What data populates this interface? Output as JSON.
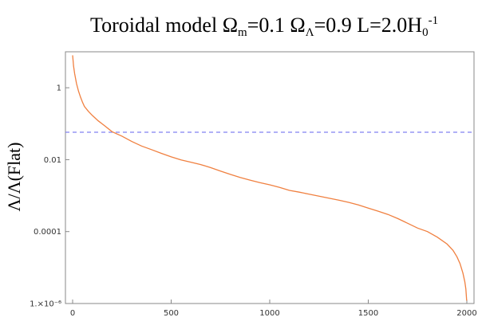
{
  "chart_data": {
    "type": "line",
    "title": {
      "prefix": "Toroidal model Ω",
      "omega_m_sub": "m",
      "omega_m_rest": "=0.1 Ω",
      "omega_l_sub": "Λ",
      "omega_l_rest": "=0.9 L=2.0H",
      "h_sub": "0",
      "h_sup": "-1"
    },
    "xlabel": "",
    "ylabel": "Λ/Λ(Flat)",
    "y_scale": "log",
    "xlim": [
      0,
      2000
    ],
    "ylim": [
      1e-06,
      10
    ],
    "x_ticks": [
      {
        "value": 0,
        "label": "0"
      },
      {
        "value": 500,
        "label": "500"
      },
      {
        "value": 1000,
        "label": "1000"
      },
      {
        "value": 1500,
        "label": "1500"
      },
      {
        "value": 2000,
        "label": "2000"
      }
    ],
    "y_ticks": [
      {
        "value": 1,
        "label": "1"
      },
      {
        "value": 0.01,
        "label": "0.01"
      },
      {
        "value": 0.0001,
        "label": "0.0001"
      },
      {
        "value": 1e-06,
        "label": "1.×10⁻⁶"
      }
    ],
    "reference_line": {
      "y": 0.058,
      "style": "dashed",
      "color": "#8080f0"
    },
    "series": [
      {
        "color": "#f08040",
        "x": [
          0,
          2,
          5,
          10,
          15,
          20,
          30,
          40,
          50,
          60,
          80,
          100,
          130,
          160,
          200,
          250,
          300,
          350,
          400,
          450,
          500,
          550,
          600,
          650,
          700,
          750,
          800,
          850,
          900,
          950,
          1000,
          1050,
          1100,
          1150,
          1200,
          1250,
          1300,
          1350,
          1400,
          1450,
          1500,
          1550,
          1600,
          1650,
          1700,
          1750,
          1800,
          1850,
          1900,
          1930,
          1950,
          1965,
          1980,
          1990,
          1995,
          1999
        ],
        "y": [
          8,
          6,
          4,
          2.5,
          1.8,
          1.3,
          0.8,
          0.55,
          0.4,
          0.3,
          0.22,
          0.17,
          0.12,
          0.09,
          0.06,
          0.045,
          0.032,
          0.024,
          0.019,
          0.015,
          0.012,
          0.0098,
          0.0085,
          0.0073,
          0.006,
          0.0048,
          0.0039,
          0.0032,
          0.0027,
          0.0023,
          0.002,
          0.0017,
          0.0014,
          0.00125,
          0.0011,
          0.00097,
          0.00085,
          0.00075,
          0.00065,
          0.00055,
          0.00045,
          0.00037,
          0.0003,
          0.00023,
          0.00017,
          0.000125,
          0.0001,
          7e-05,
          4.5e-05,
          3e-05,
          2e-05,
          1.3e-05,
          7e-06,
          4e-06,
          2.5e-06,
          1.2e-06
        ]
      }
    ],
    "grid": false,
    "legend": "none"
  }
}
